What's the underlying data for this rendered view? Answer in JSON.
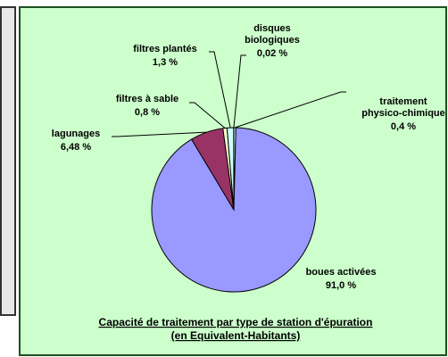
{
  "chart_data": {
    "type": "pie",
    "title": "Capacité de traitement par type de station d'épuration",
    "subtitle": "(en Equivalent-Habitants)",
    "categories": [
      "traitement physico-chimique",
      "boues activées",
      "lagunages",
      "filtres à sable",
      "filtres plantés",
      "disques biologiques"
    ],
    "values": [
      0.4,
      91.0,
      6.48,
      0.8,
      1.3,
      0.02
    ],
    "value_labels": [
      "0,4 %",
      "91,0 %",
      "6,48 %",
      "0,8 %",
      "1,3 %",
      "0,02 %"
    ],
    "colors": [
      "#ccffff",
      "#9999ff",
      "#993366",
      "#ffffcc",
      "#ccffff",
      "#ffffff"
    ]
  }
}
